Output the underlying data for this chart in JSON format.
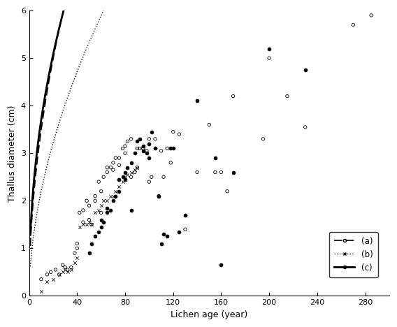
{
  "xlabel": "Lichen age (year)",
  "ylabel": "Thallus diameter (cm)",
  "xlim": [
    0,
    300
  ],
  "ylim": [
    0,
    6
  ],
  "xticks": [
    0,
    40,
    80,
    120,
    160,
    200,
    240,
    280
  ],
  "yticks": [
    0,
    1,
    2,
    3,
    4,
    5,
    6
  ],
  "curve_a_params": {
    "a": 1.05,
    "b": 0.52
  },
  "curve_b_params": {
    "a": 0.62,
    "b": 0.55
  },
  "curve_c_params": {
    "a": 1.28,
    "b": 0.46
  },
  "scatter_a": [
    [
      10,
      0.35
    ],
    [
      15,
      0.45
    ],
    [
      18,
      0.5
    ],
    [
      22,
      0.55
    ],
    [
      25,
      0.45
    ],
    [
      28,
      0.65
    ],
    [
      30,
      0.6
    ],
    [
      32,
      0.55
    ],
    [
      35,
      0.6
    ],
    [
      38,
      0.9
    ],
    [
      40,
      1.0
    ],
    [
      40,
      1.1
    ],
    [
      42,
      1.75
    ],
    [
      45,
      1.8
    ],
    [
      45,
      1.55
    ],
    [
      48,
      2.0
    ],
    [
      50,
      1.9
    ],
    [
      50,
      1.6
    ],
    [
      52,
      1.5
    ],
    [
      55,
      2.0
    ],
    [
      55,
      2.1
    ],
    [
      58,
      2.4
    ],
    [
      60,
      1.75
    ],
    [
      60,
      2.2
    ],
    [
      62,
      2.5
    ],
    [
      65,
      2.7
    ],
    [
      65,
      2.6
    ],
    [
      68,
      2.7
    ],
    [
      70,
      2.65
    ],
    [
      70,
      2.8
    ],
    [
      72,
      2.9
    ],
    [
      75,
      2.9
    ],
    [
      75,
      2.75
    ],
    [
      78,
      3.1
    ],
    [
      80,
      3.0
    ],
    [
      80,
      3.15
    ],
    [
      82,
      3.25
    ],
    [
      85,
      3.3
    ],
    [
      85,
      2.5
    ],
    [
      88,
      2.6
    ],
    [
      90,
      3.1
    ],
    [
      90,
      2.7
    ],
    [
      92,
      3.1
    ],
    [
      95,
      3.1
    ],
    [
      95,
      3.1
    ],
    [
      98,
      3.05
    ],
    [
      100,
      3.3
    ],
    [
      100,
      2.4
    ],
    [
      102,
      2.5
    ],
    [
      105,
      3.3
    ],
    [
      108,
      2.1
    ],
    [
      110,
      3.05
    ],
    [
      112,
      2.5
    ],
    [
      115,
      3.1
    ],
    [
      118,
      2.8
    ],
    [
      120,
      3.45
    ],
    [
      125,
      3.4
    ],
    [
      130,
      1.4
    ],
    [
      140,
      2.6
    ],
    [
      150,
      3.6
    ],
    [
      155,
      2.6
    ],
    [
      160,
      2.6
    ],
    [
      165,
      2.2
    ],
    [
      170,
      4.2
    ],
    [
      195,
      3.3
    ],
    [
      200,
      5.0
    ],
    [
      215,
      4.2
    ],
    [
      230,
      3.55
    ],
    [
      270,
      5.7
    ],
    [
      285,
      5.9
    ]
  ],
  "scatter_b": [
    [
      10,
      0.1
    ],
    [
      15,
      0.3
    ],
    [
      20,
      0.35
    ],
    [
      25,
      0.45
    ],
    [
      28,
      0.5
    ],
    [
      30,
      0.55
    ],
    [
      32,
      0.5
    ],
    [
      35,
      0.55
    ],
    [
      38,
      0.7
    ],
    [
      40,
      0.8
    ],
    [
      42,
      1.45
    ],
    [
      45,
      1.5
    ],
    [
      48,
      1.5
    ],
    [
      50,
      1.55
    ],
    [
      52,
      1.5
    ],
    [
      55,
      1.75
    ],
    [
      58,
      1.8
    ],
    [
      60,
      1.9
    ],
    [
      62,
      2.0
    ],
    [
      65,
      2.0
    ],
    [
      68,
      2.1
    ],
    [
      70,
      2.1
    ],
    [
      72,
      2.2
    ],
    [
      75,
      2.3
    ],
    [
      78,
      2.4
    ],
    [
      80,
      2.5
    ],
    [
      82,
      2.55
    ],
    [
      85,
      2.6
    ],
    [
      88,
      2.65
    ],
    [
      90,
      2.7
    ]
  ],
  "scatter_c": [
    [
      50,
      0.9
    ],
    [
      52,
      1.1
    ],
    [
      55,
      1.25
    ],
    [
      58,
      1.35
    ],
    [
      60,
      1.45
    ],
    [
      60,
      1.6
    ],
    [
      62,
      1.55
    ],
    [
      65,
      1.75
    ],
    [
      65,
      1.85
    ],
    [
      68,
      1.8
    ],
    [
      70,
      2.0
    ],
    [
      72,
      2.1
    ],
    [
      75,
      2.2
    ],
    [
      75,
      2.45
    ],
    [
      78,
      2.5
    ],
    [
      80,
      2.6
    ],
    [
      80,
      2.45
    ],
    [
      82,
      2.7
    ],
    [
      85,
      2.8
    ],
    [
      85,
      1.8
    ],
    [
      88,
      3.0
    ],
    [
      90,
      3.25
    ],
    [
      92,
      3.3
    ],
    [
      95,
      3.15
    ],
    [
      95,
      3.05
    ],
    [
      98,
      3.0
    ],
    [
      100,
      2.9
    ],
    [
      100,
      3.2
    ],
    [
      102,
      3.45
    ],
    [
      105,
      3.1
    ],
    [
      108,
      2.1
    ],
    [
      110,
      1.1
    ],
    [
      112,
      1.3
    ],
    [
      115,
      1.25
    ],
    [
      118,
      3.1
    ],
    [
      120,
      3.1
    ],
    [
      125,
      1.35
    ],
    [
      130,
      1.7
    ],
    [
      140,
      4.1
    ],
    [
      155,
      2.9
    ],
    [
      160,
      0.65
    ],
    [
      170,
      2.6
    ],
    [
      200,
      5.2
    ],
    [
      230,
      4.75
    ]
  ],
  "background_color": "#ffffff"
}
